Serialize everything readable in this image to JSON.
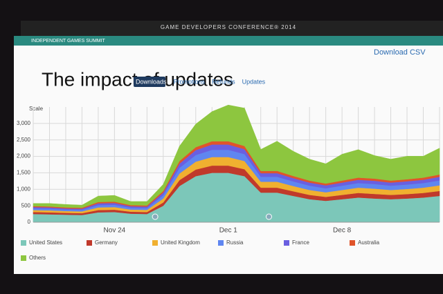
{
  "header": {
    "event": "GAME DEVELOPERS CONFERENCE® 2014",
    "summit": "INDEPENDENT GAMES SUMMIT",
    "download": "Download CSV"
  },
  "tabs": [
    "Downloads",
    "Promotions",
    "Refunds",
    "Updates"
  ],
  "scale_label": "Scale",
  "chart_data": {
    "type": "stacked_area",
    "title": "The impact of updates",
    "categories": [
      null,
      null,
      null,
      null,
      null,
      "Nov 24",
      null,
      null,
      null,
      null,
      null,
      null,
      "Dec 1",
      null,
      null,
      null,
      null,
      null,
      null,
      "Dec 8",
      null,
      null,
      null,
      null,
      null,
      null
    ],
    "series": [
      {
        "name": "United States",
        "color": "#7cc7b9",
        "values": [
          250,
          240,
          230,
          220,
          300,
          310,
          260,
          250,
          500,
          1100,
          1400,
          1500,
          1500,
          1400,
          900,
          900,
          800,
          700,
          650,
          700,
          750,
          720,
          700,
          720,
          750,
          800
        ]
      },
      {
        "name": "Germany",
        "color": "#c0392b",
        "values": [
          60,
          60,
          55,
          55,
          70,
          70,
          60,
          60,
          100,
          180,
          200,
          220,
          220,
          210,
          150,
          150,
          140,
          130,
          120,
          130,
          140,
          140,
          130,
          135,
          140,
          150
        ]
      },
      {
        "name": "United Kingdom",
        "color": "#f0b030",
        "values": [
          60,
          60,
          55,
          55,
          80,
          80,
          65,
          65,
          120,
          200,
          240,
          260,
          260,
          250,
          180,
          180,
          160,
          150,
          140,
          150,
          160,
          160,
          150,
          155,
          160,
          170
        ]
      },
      {
        "name": "Russia",
        "color": "#5f86f0",
        "values": [
          50,
          50,
          45,
          45,
          70,
          70,
          55,
          55,
          100,
          170,
          200,
          220,
          220,
          210,
          150,
          150,
          140,
          130,
          120,
          130,
          140,
          140,
          130,
          135,
          140,
          150
        ]
      },
      {
        "name": "France",
        "color": "#6a5fe0",
        "values": [
          40,
          40,
          35,
          35,
          55,
          55,
          45,
          45,
          80,
          130,
          150,
          160,
          160,
          150,
          110,
          110,
          100,
          95,
          90,
          95,
          100,
          100,
          95,
          100,
          100,
          110
        ]
      },
      {
        "name": "Australia",
        "color": "#e0542a",
        "values": [
          30,
          30,
          30,
          30,
          40,
          40,
          35,
          35,
          50,
          80,
          90,
          100,
          100,
          95,
          70,
          70,
          65,
          60,
          55,
          60,
          65,
          65,
          60,
          60,
          65,
          70
        ]
      },
      {
        "name": "Others",
        "color": "#8dc63f",
        "values": [
          80,
          90,
          90,
          80,
          180,
          190,
          110,
          120,
          200,
          450,
          700,
          900,
          1100,
          1150,
          650,
          900,
          750,
          650,
          600,
          800,
          850,
          700,
          650,
          700,
          650,
          800
        ]
      }
    ],
    "ylim": [
      0,
      3500
    ],
    "yticks": [
      0,
      500,
      {
        "value": 1000,
        "label": "1,000"
      },
      {
        "value": 1500,
        "label": "1,500"
      },
      {
        "value": 2000,
        "label": "2,000"
      },
      {
        "value": 2500,
        "label": "2,500"
      },
      {
        "value": 3000,
        "label": "3,000"
      }
    ],
    "grid": true
  }
}
